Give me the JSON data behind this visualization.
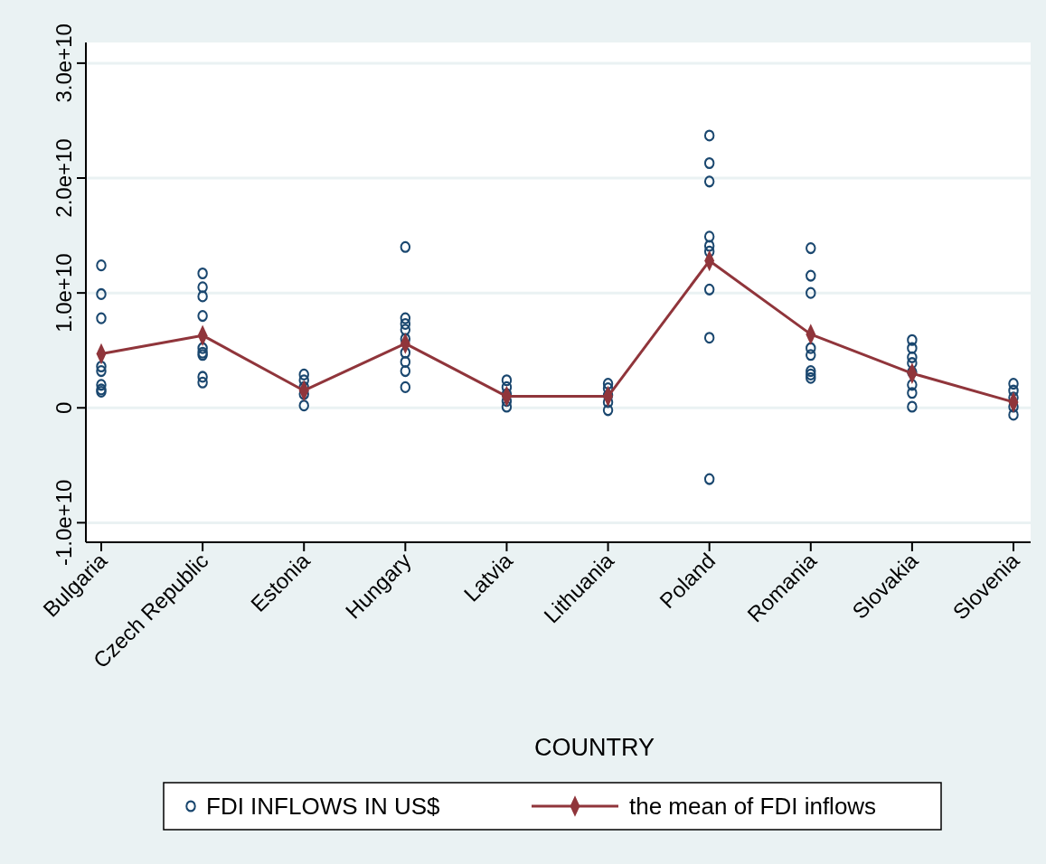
{
  "chart_data": {
    "type": "scatter",
    "xlabel": "COUNTRY",
    "categories": [
      "Bulgaria",
      "Czech Republic",
      "Estonia",
      "Hungary",
      "Latvia",
      "Lithuania",
      "Poland",
      "Romania",
      "Slovakia",
      "Slovenia"
    ],
    "ylim": [
      -11700000000.0,
      31800000000.0
    ],
    "yticks": [
      {
        "value": -10000000000.0,
        "label": "-1.0e+10"
      },
      0,
      {
        "value": 10000000000.0,
        "label": "1.0e+10"
      },
      {
        "value": 20000000000.0,
        "label": "2.0e+10"
      },
      {
        "value": 30000000000.0,
        "label": "3.0e+10"
      }
    ],
    "grid": "y",
    "legend": "bottom",
    "series": [
      {
        "name": "FDI INFLOWS IN US$",
        "marker": "circle",
        "color": "#1a476f",
        "x": [
          "Bulgaria",
          "Bulgaria",
          "Bulgaria",
          "Bulgaria",
          "Bulgaria",
          "Bulgaria",
          "Bulgaria",
          "Bulgaria",
          "Czech Republic",
          "Czech Republic",
          "Czech Republic",
          "Czech Republic",
          "Czech Republic",
          "Czech Republic",
          "Czech Republic",
          "Czech Republic",
          "Czech Republic",
          "Estonia",
          "Estonia",
          "Estonia",
          "Estonia",
          "Estonia",
          "Hungary",
          "Hungary",
          "Hungary",
          "Hungary",
          "Hungary",
          "Hungary",
          "Hungary",
          "Hungary",
          "Hungary",
          "Latvia",
          "Latvia",
          "Latvia",
          "Latvia",
          "Latvia",
          "Lithuania",
          "Lithuania",
          "Lithuania",
          "Lithuania",
          "Lithuania",
          "Poland",
          "Poland",
          "Poland",
          "Poland",
          "Poland",
          "Poland",
          "Poland",
          "Poland",
          "Poland",
          "Romania",
          "Romania",
          "Romania",
          "Romania",
          "Romania",
          "Romania",
          "Romania",
          "Romania",
          "Slovakia",
          "Slovakia",
          "Slovakia",
          "Slovakia",
          "Slovakia",
          "Slovakia",
          "Slovakia",
          "Slovakia",
          "Slovenia",
          "Slovenia",
          "Slovenia",
          "Slovenia",
          "Slovenia"
        ],
        "values": [
          12400000000.0,
          9900000000.0,
          7800000000.0,
          3600000000.0,
          3200000000.0,
          2000000000.0,
          1600000000.0,
          1400000000.0,
          11700000000.0,
          10500000000.0,
          9700000000.0,
          8000000000.0,
          5200000000.0,
          4800000000.0,
          4600000000.0,
          2700000000.0,
          2200000000.0,
          2900000000.0,
          2400000000.0,
          1800000000.0,
          1200000000.0,
          200000000.0,
          14000000000.0,
          7800000000.0,
          7300000000.0,
          6800000000.0,
          6000000000.0,
          4800000000.0,
          4000000000.0,
          3200000000.0,
          1800000000.0,
          2400000000.0,
          1800000000.0,
          1200000000.0,
          600000000.0,
          100000000.0,
          2100000000.0,
          1700000000.0,
          1100000000.0,
          500000000.0,
          -200000000.0,
          23700000000.0,
          21300000000.0,
          19700000000.0,
          14900000000.0,
          14100000000.0,
          13600000000.0,
          10300000000.0,
          6100000000.0,
          -6200000000.0,
          13900000000.0,
          11500000000.0,
          10000000000.0,
          5200000000.0,
          4600000000.0,
          3200000000.0,
          2900000000.0,
          2600000000.0,
          5900000000.0,
          5200000000.0,
          4400000000.0,
          3900000000.0,
          3100000000.0,
          2000000000.0,
          1300000000.0,
          100000000.0,
          2100000000.0,
          1500000000.0,
          900000000.0,
          100000000.0,
          -600000000.0
        ]
      },
      {
        "name": "the mean of FDI inflows",
        "type": "line",
        "marker": "diamond",
        "color": "#90353b",
        "values": [
          4700000000.0,
          6300000000.0,
          1500000000.0,
          5600000000.0,
          1000000000.0,
          1000000000.0,
          12800000000.0,
          6400000000.0,
          3000000000.0,
          500000000.0
        ]
      }
    ]
  }
}
